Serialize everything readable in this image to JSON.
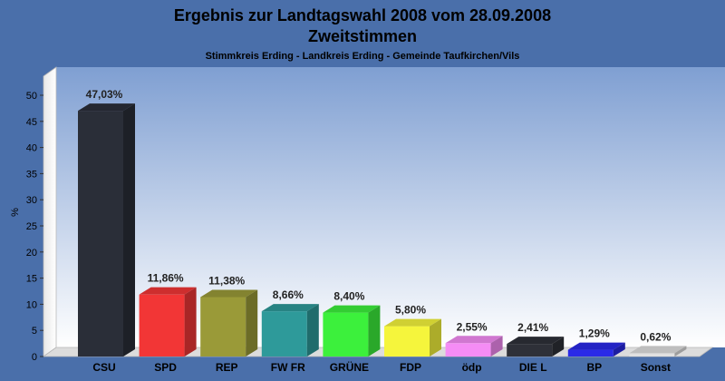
{
  "colors": {
    "background": "#4a6faa",
    "plot_gradient_top": "#8aa7d6",
    "plot_gradient_bottom": "#ffffff"
  },
  "chart_data": {
    "type": "bar",
    "title": "Ergebnis zur Landtagswahl 2008 vom 28.09.2008",
    "subtitle": "Zweitstimmen",
    "subtitle2": "Stimmkreis Erding - Landkreis Erding - Gemeinde Taufkirchen/Vils",
    "ylabel": "%",
    "xlabel": "",
    "ylim": [
      0,
      50
    ],
    "yticks": [
      0,
      5,
      10,
      15,
      20,
      25,
      30,
      35,
      40,
      45,
      50
    ],
    "grid": false,
    "legend": "none",
    "categories": [
      "CSU",
      "SPD",
      "REP",
      "FW FR",
      "GRÜNE",
      "FDP",
      "ödp",
      "DIE L",
      "BP",
      "Sonst"
    ],
    "values": [
      47.03,
      11.86,
      11.38,
      8.66,
      8.4,
      5.8,
      2.55,
      2.41,
      1.29,
      0.62
    ],
    "value_labels": [
      "47,03%",
      "11,86%",
      "11,38%",
      "8,66%",
      "8,40%",
      "5,80%",
      "2,55%",
      "2,41%",
      "1,29%",
      "0,62%"
    ],
    "bar_colors": [
      "#2a2e38",
      "#f23636",
      "#9a9a38",
      "#2e9a9a",
      "#3cf03c",
      "#f5f53c",
      "#f58cf5",
      "#2e3038",
      "#2a2ae8",
      "#e0e0e0"
    ]
  }
}
